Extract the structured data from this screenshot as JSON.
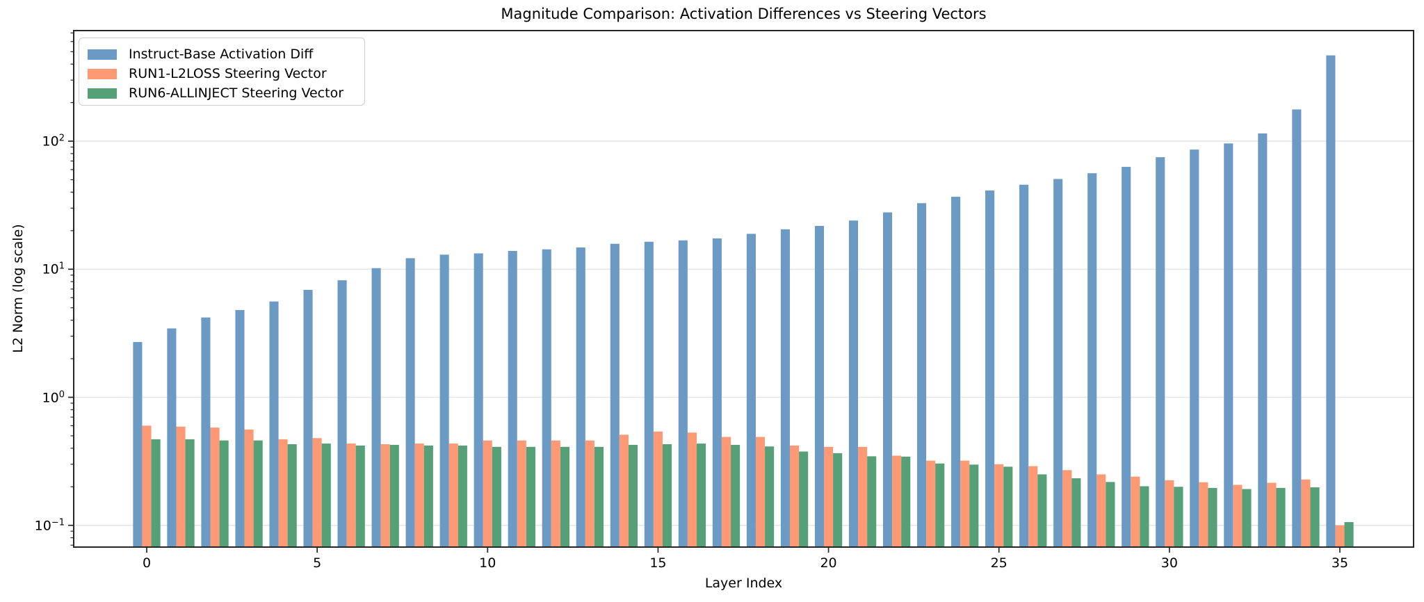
{
  "figure": {
    "title": "Magnitude Comparison: Activation Differences vs Steering Vectors",
    "xlabel": "Layer Index",
    "ylabel": "L2 Norm (log scale)"
  },
  "legend": {
    "position": "upper left",
    "items": [
      {
        "label": "Instruct-Base Activation Diff",
        "color": "#6b9ac4"
      },
      {
        "label": "RUN1-L2LOSS Steering Vector",
        "color": "#fd9a75"
      },
      {
        "label": "RUN6-ALLINJECT Steering Vector",
        "color": "#55a077"
      }
    ]
  },
  "axes": {
    "x_ticks": [
      0,
      5,
      10,
      15,
      20,
      25,
      30,
      35
    ],
    "y_ticks": [
      {
        "mantissa": "10",
        "exponent": "−1",
        "value": 0.1
      },
      {
        "mantissa": "10",
        "exponent": "0",
        "value": 1
      },
      {
        "mantissa": "10",
        "exponent": "1",
        "value": 10
      },
      {
        "mantissa": "10",
        "exponent": "2",
        "value": 100
      }
    ],
    "grid_color": "#e6e6e6",
    "spine_color": "#262626"
  },
  "chart_data": {
    "type": "bar",
    "title": "Magnitude Comparison: Activation Differences vs Steering Vectors",
    "xlabel": "Layer Index",
    "ylabel": "L2 Norm (log scale)",
    "yscale": "log",
    "ylim": [
      0.067,
      731
    ],
    "grid": true,
    "legend_position": "upper left",
    "x": [
      0,
      1,
      2,
      3,
      4,
      5,
      6,
      7,
      8,
      9,
      10,
      11,
      12,
      13,
      14,
      15,
      16,
      17,
      18,
      19,
      20,
      21,
      22,
      23,
      24,
      25,
      26,
      27,
      28,
      29,
      30,
      31,
      32,
      33,
      34,
      35
    ],
    "series": [
      {
        "name": "Instruct-Base Activation Diff",
        "color": "#6b9ac4",
        "values": [
          2.7,
          3.45,
          4.2,
          4.8,
          5.6,
          6.9,
          8.2,
          10.2,
          12.2,
          13.0,
          13.3,
          13.9,
          14.3,
          14.8,
          15.8,
          16.4,
          16.8,
          17.4,
          18.9,
          20.5,
          21.8,
          24.0,
          27.8,
          32.8,
          36.8,
          41.2,
          45.7,
          50.7,
          56.2,
          63.0,
          75.0,
          86.0,
          96.0,
          115.0,
          177.0,
          468.0
        ]
      },
      {
        "name": "RUN1-L2LOSS Steering Vector",
        "color": "#fd9a75",
        "values": [
          0.6,
          0.59,
          0.58,
          0.56,
          0.47,
          0.48,
          0.435,
          0.43,
          0.435,
          0.435,
          0.46,
          0.46,
          0.46,
          0.46,
          0.51,
          0.54,
          0.53,
          0.49,
          0.49,
          0.42,
          0.41,
          0.41,
          0.35,
          0.32,
          0.32,
          0.3,
          0.29,
          0.27,
          0.25,
          0.24,
          0.225,
          0.217,
          0.207,
          0.215,
          0.228,
          0.1
        ]
      },
      {
        "name": "RUN6-ALLINJECT Steering Vector",
        "color": "#55a077",
        "values": [
          0.47,
          0.47,
          0.46,
          0.46,
          0.43,
          0.435,
          0.42,
          0.425,
          0.42,
          0.42,
          0.41,
          0.41,
          0.41,
          0.41,
          0.425,
          0.43,
          0.435,
          0.425,
          0.413,
          0.377,
          0.366,
          0.346,
          0.344,
          0.304,
          0.298,
          0.287,
          0.25,
          0.233,
          0.218,
          0.202,
          0.2,
          0.196,
          0.192,
          0.196,
          0.198,
          0.106
        ]
      }
    ]
  }
}
